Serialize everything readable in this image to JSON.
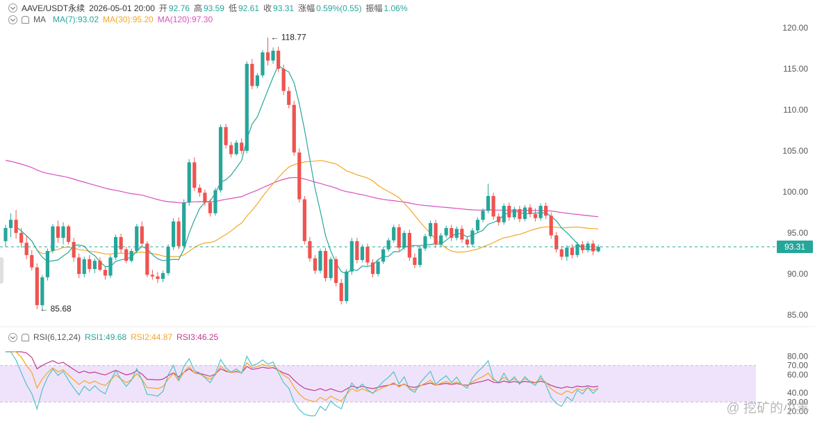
{
  "header": {
    "symbol": "AAVE/USDT永续",
    "datetime": "2026-05-01 20:00",
    "open_label": "开",
    "open": "92.76",
    "high_label": "高",
    "high": "93.59",
    "low_label": "低",
    "low": "92.61",
    "close_label": "收",
    "close": "93.31",
    "change_label": "涨幅",
    "change": "0.59%(0.55)",
    "amp_label": "振幅",
    "amp": "1.06%"
  },
  "ma_header": {
    "title": "MA",
    "ma7": "MA(7):93.02",
    "ma30": "MA(30):95.20",
    "ma120": "MA(120):97.30"
  },
  "rsi_header": {
    "title": "RSI(6,12,24)",
    "rsi1": "RSI1:49.68",
    "rsi2": "RSI2:44.87",
    "rsi3": "RSI3:46.25"
  },
  "watermark": "@ 挖矿的小羊",
  "colors": {
    "up": "#26a69a",
    "down": "#ef5350",
    "ma7": "#26a69a",
    "ma30": "#f5a623",
    "ma120": "#d94fbf",
    "rsi1": "#4fc3c3",
    "rsi2": "#f5a623",
    "rsi3": "#c2398f",
    "rsi_band": "#efe3fb",
    "price_tag": "#26a69a"
  },
  "chart_data": [
    {
      "type": "candlestick",
      "title": "AAVE/USDT永续",
      "y_ticks": [
        "120.00",
        "115.00",
        "110.00",
        "105.00",
        "100.00",
        "95.00",
        "90.00",
        "85.00"
      ],
      "ylim": [
        84.5,
        120.5
      ],
      "last_price": 93.31,
      "last_price_label": "93.31",
      "annotations": [
        {
          "text": "← 118.77",
          "value": 118.77
        },
        {
          "text": "← 85.68",
          "value": 85.68
        }
      ],
      "candles": [
        [
          94.0,
          96.0,
          93.3,
          95.6
        ],
        [
          95.6,
          97.4,
          94.5,
          96.6
        ],
        [
          96.6,
          97.8,
          94.3,
          95.0
        ],
        [
          95.0,
          95.6,
          93.2,
          93.8
        ],
        [
          93.8,
          94.6,
          91.8,
          92.3
        ],
        [
          92.3,
          92.9,
          90.4,
          90.8
        ],
        [
          90.8,
          91.3,
          85.7,
          86.2
        ],
        [
          86.2,
          89.9,
          85.7,
          89.6
        ],
        [
          89.6,
          93.1,
          89.2,
          92.8
        ],
        [
          92.8,
          96.1,
          92.5,
          95.8
        ],
        [
          95.8,
          96.5,
          93.8,
          94.4
        ],
        [
          94.4,
          96.3,
          93.6,
          95.8
        ],
        [
          95.8,
          96.0,
          93.6,
          93.9
        ],
        [
          93.9,
          94.4,
          91.5,
          92.0
        ],
        [
          92.0,
          92.5,
          89.5,
          90.0
        ],
        [
          90.0,
          92.1,
          89.6,
          91.8
        ],
        [
          91.8,
          92.3,
          90.2,
          90.6
        ],
        [
          90.6,
          91.9,
          90.1,
          91.6
        ],
        [
          91.6,
          92.0,
          90.3,
          90.5
        ],
        [
          90.5,
          90.9,
          89.3,
          89.8
        ],
        [
          89.8,
          92.3,
          89.5,
          92.0
        ],
        [
          92.0,
          94.8,
          91.7,
          94.5
        ],
        [
          94.5,
          94.9,
          92.6,
          93.0
        ],
        [
          93.0,
          93.3,
          91.3,
          91.6
        ],
        [
          91.6,
          93.1,
          91.4,
          92.8
        ],
        [
          92.8,
          96.1,
          92.5,
          95.8
        ],
        [
          95.8,
          96.4,
          93.3,
          93.7
        ],
        [
          93.7,
          94.0,
          89.6,
          89.9
        ],
        [
          89.9,
          90.5,
          89.3,
          89.7
        ],
        [
          89.7,
          90.2,
          88.9,
          89.4
        ],
        [
          89.4,
          90.4,
          89.0,
          90.1
        ],
        [
          90.1,
          93.6,
          89.8,
          93.3
        ],
        [
          93.3,
          96.8,
          92.9,
          96.4
        ],
        [
          96.4,
          96.9,
          93.0,
          93.4
        ],
        [
          93.4,
          99.1,
          93.0,
          98.7
        ],
        [
          98.7,
          104.0,
          98.3,
          103.6
        ],
        [
          103.6,
          104.2,
          100.1,
          100.5
        ],
        [
          100.5,
          100.9,
          99.4,
          99.9
        ],
        [
          99.9,
          100.3,
          98.3,
          98.7
        ],
        [
          98.7,
          99.1,
          97.0,
          97.4
        ],
        [
          97.4,
          100.5,
          97.1,
          100.2
        ],
        [
          100.2,
          108.2,
          99.9,
          107.9
        ],
        [
          107.9,
          108.3,
          105.3,
          105.7
        ],
        [
          105.7,
          106.1,
          104.2,
          104.6
        ],
        [
          104.6,
          106.3,
          104.4,
          106.0
        ],
        [
          106.0,
          106.5,
          104.6,
          105.0
        ],
        [
          105.0,
          115.9,
          104.7,
          115.6
        ],
        [
          115.6,
          116.2,
          112.5,
          112.9
        ],
        [
          112.9,
          114.5,
          112.6,
          114.2
        ],
        [
          114.2,
          117.3,
          113.9,
          117.0
        ],
        [
          117.0,
          118.8,
          115.4,
          116.0
        ],
        [
          116.0,
          117.6,
          115.6,
          117.2
        ],
        [
          117.2,
          117.7,
          114.6,
          115.0
        ],
        [
          115.0,
          115.5,
          111.8,
          112.3
        ],
        [
          112.3,
          112.8,
          110.2,
          110.6
        ],
        [
          110.6,
          111.1,
          104.4,
          104.8
        ],
        [
          104.8,
          105.3,
          98.7,
          99.1
        ],
        [
          99.1,
          99.5,
          93.6,
          94.0
        ],
        [
          94.0,
          94.5,
          91.5,
          91.9
        ],
        [
          91.9,
          92.3,
          90.0,
          90.4
        ],
        [
          90.4,
          93.1,
          90.1,
          92.8
        ],
        [
          92.8,
          93.2,
          89.1,
          89.5
        ],
        [
          89.5,
          92.1,
          89.2,
          91.8
        ],
        [
          91.8,
          92.1,
          88.5,
          88.9
        ],
        [
          88.9,
          89.4,
          86.3,
          86.7
        ],
        [
          86.7,
          90.6,
          86.4,
          90.3
        ],
        [
          90.3,
          94.4,
          89.9,
          94.0
        ],
        [
          94.0,
          94.4,
          91.3,
          91.7
        ],
        [
          91.7,
          93.6,
          91.4,
          93.3
        ],
        [
          93.3,
          93.7,
          91.0,
          91.4
        ],
        [
          91.4,
          91.8,
          89.6,
          90.0
        ],
        [
          90.0,
          91.8,
          89.7,
          91.5
        ],
        [
          91.5,
          93.3,
          91.2,
          93.0
        ],
        [
          93.0,
          94.4,
          92.7,
          94.1
        ],
        [
          94.1,
          96.0,
          93.8,
          95.7
        ],
        [
          95.7,
          96.1,
          92.8,
          93.2
        ],
        [
          93.2,
          95.3,
          92.9,
          95.0
        ],
        [
          95.0,
          95.4,
          91.6,
          92.0
        ],
        [
          92.0,
          92.5,
          90.7,
          91.1
        ],
        [
          91.1,
          93.4,
          90.8,
          93.1
        ],
        [
          93.1,
          94.9,
          92.8,
          94.6
        ],
        [
          94.6,
          96.5,
          94.3,
          96.2
        ],
        [
          96.2,
          96.6,
          93.2,
          93.6
        ],
        [
          93.6,
          95.0,
          93.3,
          94.7
        ],
        [
          94.7,
          95.9,
          94.4,
          95.6
        ],
        [
          95.6,
          96.0,
          94.0,
          94.4
        ],
        [
          94.4,
          95.8,
          94.1,
          95.5
        ],
        [
          95.5,
          95.9,
          93.8,
          94.2
        ],
        [
          94.2,
          94.6,
          93.2,
          93.6
        ],
        [
          93.6,
          95.6,
          93.3,
          95.3
        ],
        [
          95.3,
          96.9,
          95.0,
          96.6
        ],
        [
          96.6,
          98.0,
          96.3,
          97.7
        ],
        [
          97.7,
          101.0,
          97.4,
          99.5
        ],
        [
          99.5,
          99.9,
          96.6,
          97.0
        ],
        [
          97.0,
          97.4,
          95.9,
          96.3
        ],
        [
          96.3,
          98.6,
          96.0,
          98.3
        ],
        [
          98.3,
          98.7,
          96.5,
          96.9
        ],
        [
          96.9,
          98.2,
          96.6,
          97.9
        ],
        [
          97.9,
          98.3,
          96.3,
          96.7
        ],
        [
          96.7,
          98.4,
          96.4,
          98.1
        ],
        [
          98.1,
          98.5,
          96.9,
          97.3
        ],
        [
          97.3,
          98.0,
          96.4,
          96.8
        ],
        [
          96.8,
          98.6,
          96.5,
          98.3
        ],
        [
          98.3,
          98.7,
          96.7,
          97.1
        ],
        [
          97.1,
          97.5,
          94.3,
          94.7
        ],
        [
          94.7,
          95.1,
          92.6,
          93.0
        ],
        [
          93.0,
          93.4,
          91.7,
          92.1
        ],
        [
          92.1,
          93.5,
          91.6,
          93.2
        ],
        [
          93.2,
          93.6,
          91.9,
          92.3
        ],
        [
          92.3,
          93.9,
          92.0,
          93.6
        ],
        [
          93.6,
          94.0,
          92.5,
          92.9
        ],
        [
          92.9,
          94.0,
          92.6,
          93.7
        ],
        [
          93.7,
          94.1,
          92.3,
          92.76
        ],
        [
          92.76,
          93.59,
          92.61,
          93.31
        ]
      ]
    },
    {
      "type": "line",
      "title": "RSI(6,12,24)",
      "y_ticks": [
        "80.00",
        "70.00",
        "60.00",
        "40.00",
        "30.00",
        "20.00"
      ],
      "ylim": [
        15,
        85
      ],
      "band": [
        30,
        70
      ],
      "series": [
        {
          "name": "RSI1",
          "last": 49.68
        },
        {
          "name": "RSI2",
          "last": 44.87
        },
        {
          "name": "RSI3",
          "last": 46.25
        }
      ]
    }
  ]
}
